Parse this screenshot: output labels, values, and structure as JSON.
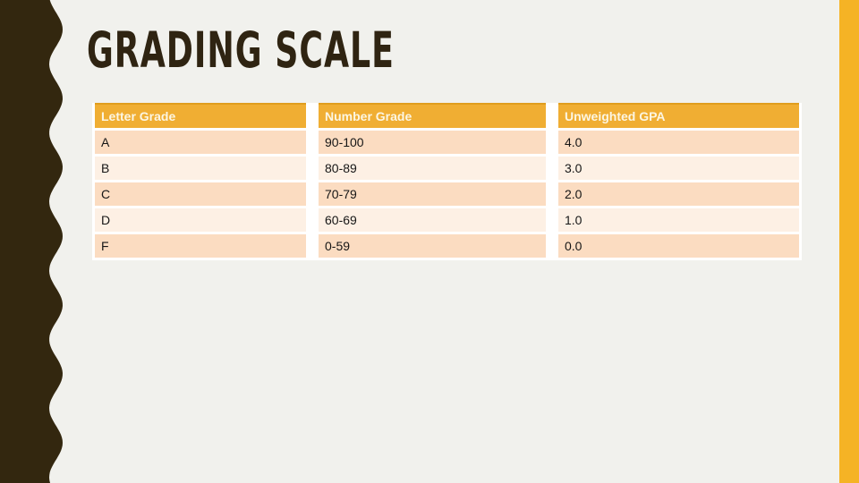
{
  "slide": {
    "title": "GRADING SCALE"
  },
  "table": {
    "headers": [
      "Letter Grade",
      "Number Grade",
      "Unweighted GPA"
    ],
    "rows": [
      {
        "letter": "A",
        "number": "90-100",
        "gpa": "4.0"
      },
      {
        "letter": "B",
        "number": "80-89",
        "gpa": "3.0"
      },
      {
        "letter": "C",
        "number": "70-79",
        "gpa": "2.0"
      },
      {
        "letter": "D",
        "number": "60-69",
        "gpa": "1.0"
      },
      {
        "letter": "F",
        "number": "0-59",
        "gpa": "0.0"
      }
    ]
  },
  "colors": {
    "background": "#F1F1ED",
    "left_wave_brown": "#33270F",
    "title_brown": "#2F2412",
    "header_amber": "#F0AE33",
    "header_top_border": "#E09D1E",
    "right_strip_amber": "#F5B325",
    "header_text": "#FCF6E3",
    "row_dark_peach": "#FBDCC1",
    "row_light_peach": "#FDF0E4",
    "cell_gap_white": "#FFFFFF"
  }
}
